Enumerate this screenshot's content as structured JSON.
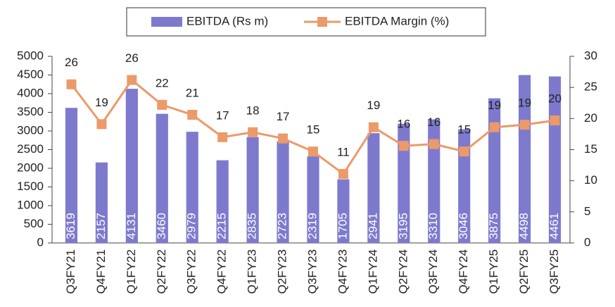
{
  "chart_data": {
    "type": "bar-line",
    "categories": [
      "Q3FY21",
      "Q4FY21",
      "Q1FY22",
      "Q2FY22",
      "Q3FY22",
      "Q4FY22",
      "Q1FY23",
      "Q2FY23",
      "Q3FY23",
      "Q4FY23",
      "Q1FY24",
      "Q2FY24",
      "Q3FY24",
      "Q4FY24",
      "Q1FY25",
      "Q2FY25",
      "Q3FY25"
    ],
    "series": [
      {
        "name": "EBITDA (Rs m)",
        "color": "#7d7ace",
        "type": "bar",
        "values": [
          3619,
          2157,
          4131,
          3460,
          2979,
          2215,
          2835,
          2723,
          2319,
          1705,
          2941,
          3195,
          3310,
          3046,
          3875,
          4498,
          4461
        ]
      },
      {
        "name": "EBITDA Margin (%)",
        "color": "#ec9a6a",
        "type": "line",
        "axis": "y2",
        "values": [
          25.5,
          19.1,
          26.2,
          22.2,
          20.6,
          17.0,
          17.8,
          16.8,
          14.7,
          11.1,
          18.6,
          15.6,
          15.9,
          14.7,
          18.6,
          19.0,
          19.7
        ],
        "value_labels": [
          "26",
          "19",
          "26",
          "22",
          "21",
          "17",
          "18",
          "17",
          "15",
          "11",
          "19",
          "16",
          "16",
          "15",
          "19",
          "19",
          "20"
        ]
      }
    ],
    "ylim": [
      0,
      5000
    ],
    "yticks": [
      0,
      500,
      1000,
      1500,
      2000,
      2500,
      3000,
      3500,
      4000,
      4500,
      5000
    ],
    "y2lim": [
      0,
      30
    ],
    "y2ticks": [
      0,
      5,
      10,
      15,
      20,
      25,
      30
    ],
    "grid": false,
    "legend": "top"
  }
}
